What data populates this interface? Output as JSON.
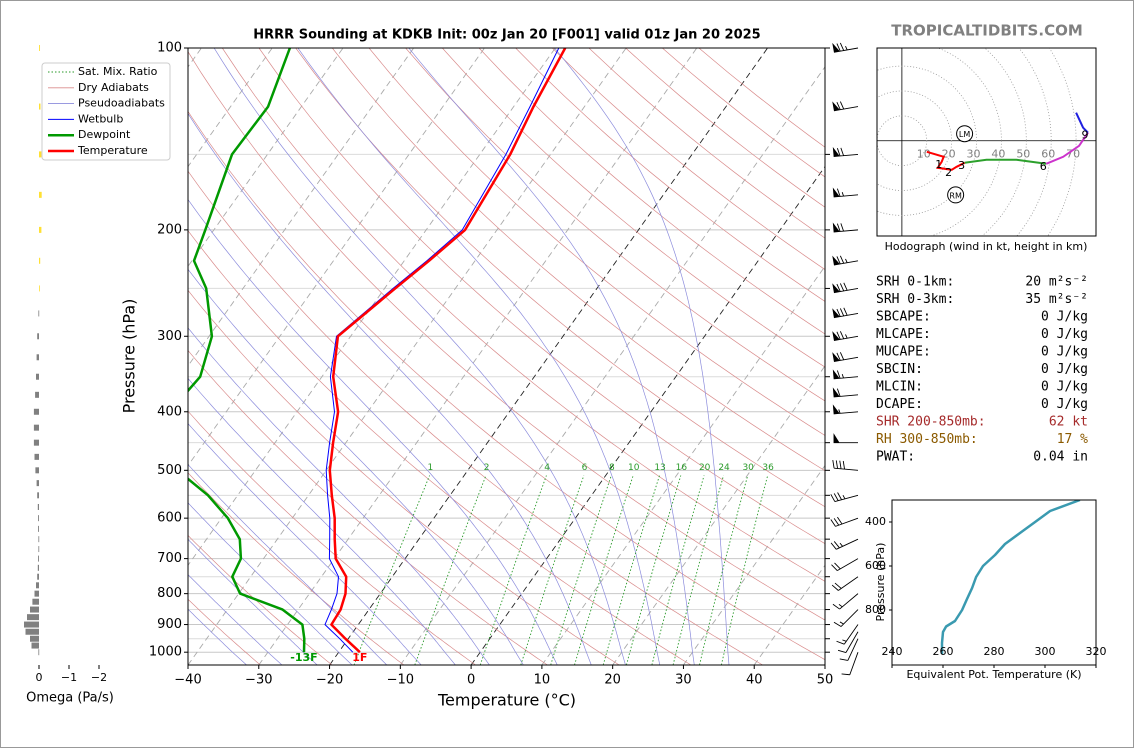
{
  "watermark": "TROPICALTIDBITS.COM",
  "stats": [
    {
      "label": "SRH 0-1km:",
      "value": "20 m²s⁻²",
      "color": "#000000"
    },
    {
      "label": "SRH 0-3km:",
      "value": "35 m²s⁻²",
      "color": "#000000"
    },
    {
      "label": "SBCAPE:",
      "value": "0 J/kg",
      "color": "#000000"
    },
    {
      "label": "MLCAPE:",
      "value": "0 J/kg",
      "color": "#000000"
    },
    {
      "label": "MUCAPE:",
      "value": "0 J/kg",
      "color": "#000000"
    },
    {
      "label": "SBCIN:",
      "value": "0 J/kg",
      "color": "#000000"
    },
    {
      "label": "MLCIN:",
      "value": "0 J/kg",
      "color": "#000000"
    },
    {
      "label": "DCAPE:",
      "value": "0 J/kg",
      "color": "#000000"
    },
    {
      "label": "SHR 200-850mb:",
      "value": "62 kt",
      "color": "#a52a2a"
    },
    {
      "label": "RH 300-850mb:",
      "value": "17 %",
      "color": "#8b5a00"
    },
    {
      "label": "PWAT:",
      "value": "0.04 in",
      "color": "#000000"
    }
  ],
  "chart_data": [
    {
      "type": "skewt",
      "title": "HRRR Sounding at KDKB Init: 00z Jan 20 [F001] valid 01z Jan 20 2025",
      "xlabel": "Temperature (°C)",
      "ylabel": "Pressure (hPa)",
      "xlim": [
        -40,
        50
      ],
      "ylim": [
        1050,
        100
      ],
      "log_y": true,
      "skew": 0.71,
      "xticks": [
        {
          "value": -40,
          "label": "−40"
        },
        {
          "value": -30,
          "label": "−30"
        },
        {
          "value": -20,
          "label": "−20"
        },
        {
          "value": -10,
          "label": "−10"
        },
        0,
        10,
        20,
        30,
        40,
        50
      ],
      "yticks": [
        100,
        200,
        300,
        400,
        500,
        600,
        700,
        800,
        900,
        1000
      ],
      "yminor": [
        150,
        250,
        350,
        450,
        550,
        650,
        750,
        850,
        950
      ],
      "pressure": [
        1000,
        950,
        900,
        850,
        800,
        750,
        700,
        650,
        600,
        550,
        500,
        450,
        400,
        350,
        300,
        250,
        225,
        200,
        150,
        125,
        100
      ],
      "series": [
        {
          "name": "Wetbulb",
          "color": "#0000ff",
          "linewidth": 1,
          "values": [
            -18.0,
            -21.2,
            -24.7,
            -25.3,
            -26.1,
            -27.6,
            -30.7,
            -32.6,
            -34.7,
            -37.3,
            -40.0,
            -42.3,
            -44.7,
            -48.8,
            -52.0,
            -48.8,
            -46.8,
            -44.9,
            -46.3,
            -47.7,
            -49.5
          ]
        },
        {
          "name": "Dewpoint",
          "color": "#009900",
          "linewidth": 2.5,
          "values": [
            -24.9,
            -26.2,
            -27.9,
            -32.2,
            -39.8,
            -42.6,
            -43.2,
            -45.3,
            -49.1,
            -54.2,
            -61,
            -65,
            -68,
            -67.2,
            -69.6,
            -75.2,
            -79.7,
            -81.2,
            -85,
            -84.7,
            -87.5
          ]
        },
        {
          "name": "Temperature",
          "color": "#ff0000",
          "linewidth": 2.5,
          "values": [
            -17.0,
            -20.4,
            -23.8,
            -24.0,
            -24.9,
            -26.5,
            -29.8,
            -31.9,
            -34.0,
            -36.7,
            -39.5,
            -41.8,
            -44.2,
            -48.4,
            -51.8,
            -48.5,
            -46.5,
            -44.5,
            -45.7,
            -47.2,
            -48.6
          ]
        }
      ],
      "background_lines": [
        {
          "name": "Sat. Mix. Ratio",
          "color": "#2a9a2a"
        },
        {
          "name": "Dry Adiabats",
          "color": "#d98c8c"
        },
        {
          "name": "Pseudoadiabats",
          "color": "#8c8cdc"
        }
      ],
      "mixing_ratios": [
        1,
        2,
        4,
        6,
        8,
        10,
        13,
        16,
        20,
        24,
        30,
        36
      ],
      "dry_adiabats": [
        230,
        240,
        250,
        260,
        270,
        280,
        290,
        300,
        310,
        320,
        330,
        340,
        350,
        360,
        370,
        380,
        390,
        400,
        410,
        420,
        430,
        440,
        450,
        460,
        470
      ],
      "pseudoadiabats": [
        -35,
        -30,
        -25,
        -20,
        -15,
        -10,
        -5,
        0,
        5,
        10,
        15,
        20,
        25,
        30,
        35
      ],
      "isotherms": [
        -110,
        -100,
        -90,
        -80,
        -70,
        -60,
        -50,
        -40,
        -30,
        -10,
        10,
        20,
        30,
        40,
        50
      ],
      "highlight_isotherms": [
        -20,
        0
      ],
      "annotations": [
        {
          "text": "-13F",
          "color": "#009900"
        },
        {
          "text": "1F",
          "color": "#ff0000"
        }
      ],
      "barbs": {
        "pressure": [
          100,
          125,
          150,
          175,
          200,
          225,
          250,
          275,
          300,
          325,
          350,
          375,
          400,
          450,
          500,
          550,
          600,
          650,
          700,
          750,
          800,
          850,
          900,
          925,
          950,
          1000
        ],
        "speed": [
          75,
          70,
          70,
          65,
          70,
          75,
          80,
          80,
          75,
          70,
          65,
          60,
          55,
          50,
          40,
          35,
          30,
          25,
          20,
          20,
          15,
          15,
          15,
          10,
          10,
          10
        ],
        "direction": [
          260,
          260,
          265,
          265,
          265,
          260,
          260,
          260,
          260,
          260,
          265,
          265,
          265,
          270,
          275,
          255,
          250,
          245,
          240,
          235,
          230,
          225,
          215,
          210,
          205,
          200
        ]
      }
    },
    {
      "type": "hodograph",
      "caption": "Hodograph (wind in kt, height in km)",
      "xlim": [
        -10,
        78
      ],
      "ylim": [
        -38,
        37
      ],
      "rings": [
        10,
        20,
        30,
        40,
        50,
        60,
        70
      ],
      "heights": [
        0,
        0.5,
        1,
        1.5,
        2,
        2.5,
        3,
        4,
        5,
        6,
        7,
        8,
        9,
        10,
        11
      ],
      "u": [
        10,
        16.8,
        16,
        14.4,
        20,
        22,
        25.2,
        34,
        46,
        58,
        64.8,
        71.2,
        74.8,
        72.8,
        70
      ],
      "v": [
        -4.4,
        -6.4,
        -8.4,
        -10.8,
        -11.6,
        -10.4,
        -8.8,
        -7.6,
        -7.6,
        -9.2,
        -6.4,
        -2,
        3.2,
        5.2,
        11.2
      ],
      "height_labels": [
        1,
        2,
        3,
        6,
        9
      ],
      "segments": [
        {
          "top": 3,
          "color": "#ff0000"
        },
        {
          "top": 6,
          "color": "#2ca02c"
        },
        {
          "top": 9,
          "color": "#cc33cc"
        },
        {
          "top": 11,
          "color": "#2020e0"
        }
      ],
      "storm_motion": [
        {
          "text": "LM",
          "u": 25.2,
          "v": 2.8
        },
        {
          "text": "RM",
          "u": 21.6,
          "v": -21.6
        }
      ]
    },
    {
      "type": "line",
      "xlabel": "Equivalent Pot. Temperature (K)",
      "ylabel": "Pressure (hPa)",
      "xlim": [
        240,
        320
      ],
      "ylim": [
        1050,
        300
      ],
      "xticks": [
        240,
        260,
        280,
        300,
        320
      ],
      "yticks": [
        400,
        600,
        800
      ],
      "pressure": [
        1000,
        950,
        900,
        875,
        850,
        800,
        750,
        700,
        650,
        600,
        550,
        500,
        450,
        400,
        350,
        300
      ],
      "values": [
        259.6,
        259.6,
        260,
        261.2,
        264.7,
        267.5,
        269.4,
        271.4,
        273,
        275.7,
        280.4,
        284.3,
        290.2,
        296.1,
        302,
        313.7
      ],
      "color": "#3a9ab0"
    },
    {
      "type": "omega",
      "xlabel": "Omega (Pa/s)",
      "xlim": [
        1,
        -3
      ],
      "xticks": [
        0,
        {
          "value": -1,
          "label": "−1"
        },
        {
          "value": -2,
          "label": "−2"
        }
      ],
      "positive_color": "#808080",
      "negative_color": "#ffe033",
      "pressure": [
        100,
        125,
        150,
        175,
        200,
        225,
        250,
        275,
        300,
        325,
        350,
        375,
        400,
        425,
        450,
        475,
        500,
        525,
        550,
        575,
        600,
        625,
        650,
        675,
        700,
        725,
        750,
        775,
        800,
        825,
        850,
        875,
        900,
        925,
        950,
        975,
        1000
      ],
      "values": [
        -0.03,
        -0.05,
        -0.08,
        -0.09,
        -0.08,
        -0.04,
        -0.02,
        0.02,
        0.06,
        0.08,
        0.1,
        0.13,
        0.17,
        0.17,
        0.17,
        0.15,
        0.12,
        0.08,
        0.06,
        0.04,
        0.03,
        0.03,
        0.02,
        0.02,
        0.03,
        0.04,
        0.06,
        0.1,
        0.15,
        0.22,
        0.3,
        0.4,
        0.5,
        0.45,
        0.3,
        0.25,
        0.02
      ]
    }
  ]
}
